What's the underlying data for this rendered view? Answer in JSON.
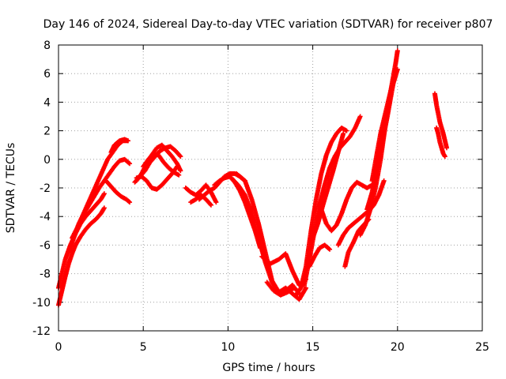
{
  "chart_data": {
    "type": "scatter",
    "title": "Day 146 of 2024, Sidereal Day-to-day VTEC variation (SDTVAR) for receiver p807",
    "xlabel": "GPS time / hours",
    "ylabel": "SDTVAR / TECUs",
    "xlim": [
      0,
      25
    ],
    "ylim": [
      -12,
      8
    ],
    "xticks": [
      "0",
      "5",
      "10",
      "15",
      "20",
      "25"
    ],
    "yticks": [
      "-12",
      "-10",
      "-8",
      "-6",
      "-4",
      "-2",
      "0",
      "2",
      "4",
      "6",
      "8"
    ],
    "grid": true,
    "marker": "+",
    "color": "#ff0000",
    "series": [
      {
        "x": [
          0,
          0.2,
          0.4,
          0.6,
          0.8,
          1.0,
          1.3,
          1.6,
          1.9,
          2.2,
          2.5,
          2.7
        ],
        "y": [
          -10.2,
          -9.2,
          -8.2,
          -7.3,
          -6.6,
          -6.0,
          -5.4,
          -4.9,
          -4.5,
          -4.2,
          -3.8,
          -3.4
        ]
      },
      {
        "x": [
          0,
          0.2,
          0.4,
          0.7,
          1.0,
          1.3,
          1.6,
          1.9,
          2.2,
          2.5,
          2.7
        ],
        "y": [
          -9.0,
          -8.0,
          -7.0,
          -6.0,
          -5.2,
          -4.5,
          -4.0,
          -3.6,
          -3.2,
          -2.8,
          -2.4
        ]
      },
      {
        "x": [
          0.6,
          0.9,
          1.2,
          1.5,
          1.8,
          2.1,
          2.4,
          2.7,
          3.0,
          3.3,
          3.6,
          3.9,
          4.2
        ],
        "y": [
          -6.5,
          -5.5,
          -4.5,
          -3.8,
          -3.2,
          -2.6,
          -2.0,
          -1.5,
          -1.0,
          -0.5,
          -0.1,
          0.0,
          -0.3
        ]
      },
      {
        "x": [
          0.8,
          1.1,
          1.4,
          1.7,
          2.0,
          2.3,
          2.6,
          2.9,
          3.2,
          3.5,
          3.8,
          4.1
        ],
        "y": [
          -5.5,
          -4.8,
          -4.0,
          -3.2,
          -2.4,
          -1.6,
          -0.8,
          0.0,
          0.5,
          1.0,
          1.3,
          1.3
        ]
      },
      {
        "x": [
          2.8,
          3.1,
          3.4,
          3.7,
          4.0,
          4.2
        ],
        "y": [
          -1.5,
          -1.9,
          -2.3,
          -2.6,
          -2.8,
          -3.0
        ]
      },
      {
        "x": [
          3.1,
          3.3,
          3.6,
          3.9,
          4.1
        ],
        "y": [
          0.5,
          1.0,
          1.3,
          1.4,
          1.3
        ]
      },
      {
        "x": [
          4.5,
          4.8,
          5.1,
          5.4,
          5.7,
          6.0,
          6.3,
          6.6,
          6.9,
          7.2
        ],
        "y": [
          -1.6,
          -1.2,
          -0.8,
          -0.2,
          0.2,
          0.6,
          0.8,
          0.9,
          0.6,
          0.2
        ]
      },
      {
        "x": [
          4.6,
          4.9,
          5.2,
          5.5,
          5.8,
          6.1,
          6.4,
          6.7,
          7.0,
          7.2
        ],
        "y": [
          -1.5,
          -1.0,
          -0.3,
          0.3,
          0.8,
          1.0,
          0.6,
          0.2,
          -0.3,
          -0.8
        ]
      },
      {
        "x": [
          4.6,
          4.9,
          5.2,
          5.5,
          5.8,
          6.1,
          6.4,
          6.7,
          7.0
        ],
        "y": [
          -1.3,
          -1.2,
          -1.5,
          -2.0,
          -2.1,
          -1.8,
          -1.4,
          -1.0,
          -0.5
        ]
      },
      {
        "x": [
          5.0,
          5.3,
          5.6,
          5.9,
          6.2,
          6.5,
          6.8,
          7.1
        ],
        "y": [
          -0.5,
          0.0,
          0.4,
          0.3,
          -0.2,
          -0.6,
          -0.9,
          -1.1
        ]
      },
      {
        "x": [
          7.5,
          7.8,
          8.1,
          8.4,
          8.7,
          9.0,
          9.3
        ],
        "y": [
          -2.0,
          -2.3,
          -2.5,
          -2.2,
          -1.8,
          -2.3,
          -3.0
        ]
      },
      {
        "x": [
          7.8,
          8.1,
          8.4,
          8.7,
          9.0
        ],
        "y": [
          -3.0,
          -2.8,
          -2.5,
          -2.8,
          -3.2
        ]
      },
      {
        "x": [
          8.3,
          8.6,
          8.9,
          9.2,
          9.5,
          9.8,
          10.1,
          10.4,
          10.7,
          11.0
        ],
        "y": [
          -2.8,
          -2.5,
          -2.2,
          -2.0,
          -1.6,
          -1.2,
          -1.0,
          -1.0,
          -1.2,
          -1.5
        ]
      },
      {
        "x": [
          9.2,
          9.5,
          9.8,
          10.1,
          10.4,
          10.7,
          11.0,
          11.3,
          11.6,
          11.9
        ],
        "y": [
          -1.8,
          -1.5,
          -1.3,
          -1.2,
          -1.6,
          -2.2,
          -3.0,
          -4.0,
          -5.0,
          -6.2
        ]
      },
      {
        "x": [
          10.2,
          10.6,
          11.0,
          11.4,
          11.8,
          12.2,
          12.6,
          13.0,
          13.4,
          13.8,
          14.2
        ],
        "y": [
          -1.3,
          -1.8,
          -2.5,
          -3.8,
          -5.5,
          -7.2,
          -8.6,
          -9.3,
          -9.2,
          -8.8,
          -9.4
        ]
      },
      {
        "x": [
          10.5,
          11.0,
          11.4,
          11.8,
          12.2,
          12.6,
          13.0,
          13.4,
          13.8,
          14.2,
          14.6
        ],
        "y": [
          -1.0,
          -1.5,
          -2.8,
          -4.5,
          -6.5,
          -8.5,
          -9.3,
          -9.0,
          -9.4,
          -9.8,
          -9.0
        ]
      },
      {
        "x": [
          12.0,
          12.5,
          13.0,
          13.4,
          13.8,
          14.2,
          14.6
        ],
        "y": [
          -6.8,
          -7.3,
          -7.0,
          -6.6,
          -7.8,
          -8.8,
          -8.4
        ]
      },
      {
        "x": [
          12.3,
          12.7,
          13.1,
          13.5,
          13.9
        ],
        "y": [
          -8.6,
          -9.2,
          -9.5,
          -9.3,
          -9.0
        ]
      },
      {
        "x": [
          14.0,
          14.3,
          14.6,
          14.9,
          15.2,
          15.5,
          15.8,
          16.1,
          16.4,
          16.7,
          17.0
        ],
        "y": [
          -9.5,
          -9.0,
          -7.5,
          -5.0,
          -2.8,
          -1.0,
          0.3,
          1.2,
          1.8,
          2.2,
          2.0
        ]
      },
      {
        "x": [
          14.5,
          14.8,
          15.1,
          15.4,
          15.7,
          16.0,
          16.3,
          16.6,
          16.9,
          17.2,
          17.5,
          17.8
        ],
        "y": [
          -8.8,
          -7.0,
          -5.0,
          -3.2,
          -1.8,
          -0.6,
          0.2,
          0.8,
          1.2,
          1.6,
          2.2,
          3.0
        ]
      },
      {
        "x": [
          15.0,
          15.3,
          15.6,
          15.9,
          16.2,
          16.5,
          16.8
        ],
        "y": [
          -5.5,
          -4.5,
          -3.2,
          -2.0,
          -0.8,
          0.5,
          1.8
        ]
      },
      {
        "x": [
          15.5,
          15.8,
          16.1,
          16.4,
          16.7,
          17.0,
          17.3,
          17.6,
          17.9,
          18.2,
          18.5
        ],
        "y": [
          -3.5,
          -4.5,
          -5.0,
          -4.6,
          -3.8,
          -2.8,
          -2.0,
          -1.6,
          -1.8,
          -2.0,
          -1.8
        ]
      },
      {
        "x": [
          14.8,
          15.1,
          15.4,
          15.7,
          16.0
        ],
        "y": [
          -7.5,
          -6.8,
          -6.2,
          -6.0,
          -6.3
        ]
      },
      {
        "x": [
          16.5,
          16.8,
          17.1,
          17.4,
          17.7,
          18.0,
          18.3,
          18.6,
          18.9,
          19.2
        ],
        "y": [
          -6.0,
          -5.3,
          -4.8,
          -4.5,
          -4.2,
          -3.9,
          -3.6,
          -3.2,
          -2.5,
          -1.5
        ]
      },
      {
        "x": [
          16.9,
          17.1,
          17.4,
          17.7,
          18.0,
          18.3
        ],
        "y": [
          -7.5,
          -6.5,
          -5.8,
          -5.0,
          -4.6,
          -4.2
        ]
      },
      {
        "x": [
          17.8,
          18.1,
          18.4,
          18.7,
          19.0,
          19.3,
          19.6,
          19.9,
          20.0
        ],
        "y": [
          -5.3,
          -4.6,
          -3.5,
          -2.0,
          0.0,
          2.5,
          4.8,
          6.8,
          7.6
        ]
      },
      {
        "x": [
          18.5,
          18.8,
          19.0,
          19.2,
          19.4,
          19.6,
          19.8,
          20.0
        ],
        "y": [
          -1.5,
          0.5,
          1.8,
          2.8,
          3.8,
          4.8,
          5.5,
          6.3
        ]
      },
      {
        "x": [
          18.2,
          18.5,
          18.8,
          19.1,
          19.4,
          19.7,
          19.9
        ],
        "y": [
          -3.5,
          -2.3,
          -0.5,
          1.2,
          3.0,
          5.0,
          6.3
        ]
      },
      {
        "x": [
          22.2,
          22.3,
          22.4,
          22.5,
          22.6,
          22.7,
          22.8,
          22.9
        ],
        "y": [
          4.6,
          3.8,
          3.2,
          2.6,
          2.2,
          1.8,
          1.3,
          0.8
        ]
      },
      {
        "x": [
          22.3,
          22.4,
          22.5,
          22.6,
          22.7,
          22.8
        ],
        "y": [
          2.2,
          1.8,
          1.2,
          0.8,
          0.4,
          0.2
        ]
      }
    ]
  }
}
